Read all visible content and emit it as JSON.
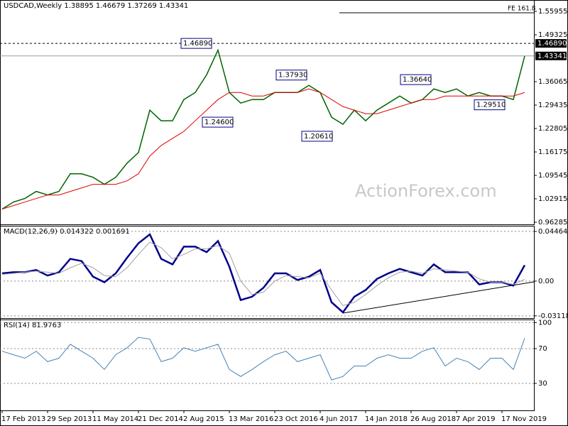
{
  "chart_data": [
    {
      "type": "line",
      "title": "USDCAD,Weekly 1.38895 1.46679 1.37269 1.43341",
      "series": [
        {
          "color": "#006400",
          "values": [
            1.0,
            1.02,
            1.03,
            1.05,
            1.04,
            1.05,
            1.1,
            1.1,
            1.09,
            1.07,
            1.09,
            1.13,
            1.16,
            1.28,
            1.25,
            1.25,
            1.31,
            1.33,
            1.38,
            1.45,
            1.33,
            1.3,
            1.31,
            1.31,
            1.33,
            1.33,
            1.33,
            1.35,
            1.33,
            1.26,
            1.24,
            1.28,
            1.25,
            1.28,
            1.3,
            1.32,
            1.3,
            1.31,
            1.34,
            1.33,
            1.34,
            1.32,
            1.33,
            1.32,
            1.32,
            1.31,
            1.43341
          ]
        },
        {
          "color": "#e00000",
          "values": [
            1.0,
            1.01,
            1.02,
            1.03,
            1.04,
            1.04,
            1.05,
            1.06,
            1.07,
            1.07,
            1.07,
            1.08,
            1.1,
            1.15,
            1.18,
            1.2,
            1.22,
            1.25,
            1.28,
            1.31,
            1.33,
            1.33,
            1.32,
            1.32,
            1.33,
            1.33,
            1.33,
            1.34,
            1.33,
            1.31,
            1.29,
            1.28,
            1.27,
            1.27,
            1.28,
            1.29,
            1.3,
            1.31,
            1.31,
            1.32,
            1.32,
            1.32,
            1.32,
            1.32,
            1.32,
            1.32,
            1.33
          ]
        }
      ],
      "ylim": [
        0.9568,
        1.5917
      ],
      "yticks": [
        1.55955,
        1.49325,
        1.36065,
        1.29435,
        1.22805,
        1.16175,
        1.09545,
        1.02915,
        0.96285
      ],
      "annotations": [
        {
          "value": 1.4689,
          "label": "1.46890"
        },
        {
          "value": 1.246,
          "label": "1.24600"
        },
        {
          "value": 1.3793,
          "label": "1.37930"
        },
        {
          "value": 1.2061,
          "label": "1.20610"
        },
        {
          "value": 1.3664,
          "label": "1.36640"
        },
        {
          "value": 1.2951,
          "label": "1.29510"
        }
      ],
      "price_markers": [
        {
          "value": 1.4689,
          "label": "1.46890"
        },
        {
          "value": 1.43341,
          "label": "1.43341"
        }
      ],
      "fe_line": {
        "value": 1.5555,
        "label": "FE 161.8"
      },
      "watermark": "ActionForex.com"
    },
    {
      "type": "line",
      "title": "MACD(12,26,9) 0.014322 0.001691",
      "series": [
        {
          "color": "#00008b",
          "values": [
            0.007,
            0.008,
            0.008,
            0.01,
            0.005,
            0.008,
            0.02,
            0.018,
            0.004,
            -0.001,
            0.007,
            0.021,
            0.034,
            0.042,
            0.02,
            0.015,
            0.031,
            0.031,
            0.026,
            0.036,
            0.013,
            -0.017,
            -0.014,
            -0.006,
            0.007,
            0.007,
            0.001,
            0.004,
            0.01,
            -0.019,
            -0.028,
            -0.014,
            -0.008,
            0.002,
            0.007,
            0.011,
            0.008,
            0.005,
            0.015,
            0.008,
            0.008,
            0.008,
            -0.003,
            -0.001,
            -0.001,
            -0.004,
            0.014322
          ]
        },
        {
          "color": "#a0a0a0",
          "values": [
            0.006,
            0.007,
            0.008,
            0.009,
            0.008,
            0.007,
            0.012,
            0.016,
            0.012,
            0.005,
            0.004,
            0.012,
            0.024,
            0.035,
            0.03,
            0.02,
            0.024,
            0.029,
            0.029,
            0.032,
            0.025,
            0.0,
            -0.012,
            -0.01,
            0.0,
            0.005,
            0.004,
            0.003,
            0.007,
            -0.008,
            -0.022,
            -0.019,
            -0.012,
            -0.004,
            0.003,
            0.008,
            0.009,
            0.007,
            0.011,
            0.01,
            0.009,
            0.008,
            0.002,
            -0.001,
            -0.001,
            -0.003,
            0.001691
          ]
        }
      ],
      "ylim": [
        -0.0332,
        0.0497
      ],
      "yticks": [
        0.044642,
        {
          "value": 0,
          "label": "0.00"
        },
        -0.031183
      ],
      "grid": true
    },
    {
      "type": "line",
      "title": "RSI(14) 81.9763",
      "categories": [
        "17 Feb 2013",
        null,
        null,
        null,
        "29 Sep 2013",
        null,
        null,
        null,
        "11 May 2014",
        null,
        null,
        null,
        "21 Dec 2014",
        null,
        null,
        null,
        "2 Aug 2015",
        null,
        null,
        null,
        "13 Mar 2016",
        null,
        null,
        null,
        "23 Oct 2016",
        null,
        null,
        null,
        "4 Jun 2017",
        null,
        null,
        null,
        "14 Jan 2018",
        null,
        null,
        null,
        "26 Aug 2018",
        null,
        null,
        null,
        "7 Apr 2019",
        null,
        null,
        null,
        "17 Nov 2019",
        null,
        null
      ],
      "series": [
        {
          "color": "#4682b4",
          "values": [
            67,
            63,
            59,
            67,
            55,
            59,
            75,
            67,
            59,
            46,
            63,
            71,
            83,
            81,
            55,
            59,
            71,
            67,
            71,
            75,
            46,
            38,
            46,
            55,
            63,
            67,
            55,
            59,
            63,
            34,
            38,
            50,
            50,
            59,
            63,
            59,
            59,
            67,
            71,
            50,
            59,
            55,
            46,
            59,
            59,
            46,
            81.9763
          ]
        }
      ],
      "ylim": [
        -1,
        103.5
      ],
      "yticks": [
        100,
        70,
        30
      ],
      "grid": true
    }
  ]
}
